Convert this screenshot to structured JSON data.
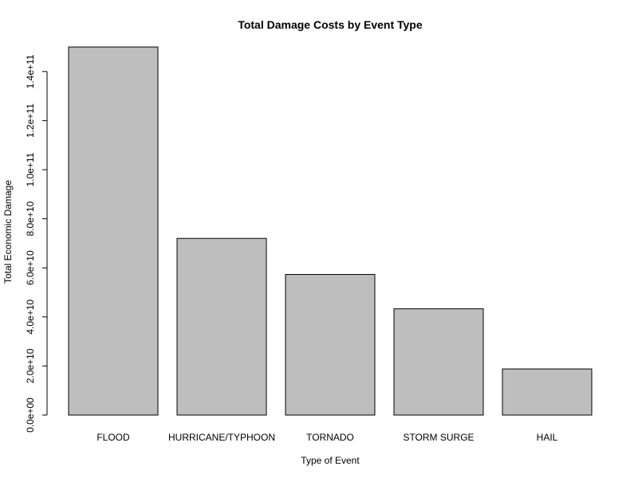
{
  "chart_data": {
    "type": "bar",
    "title": "Total Damage Costs by Event Type",
    "xlabel": "Type of Event",
    "ylabel": "Total Economic Damage",
    "categories": [
      "FLOOD",
      "HURRICANE/TYPHOON",
      "TORNADO",
      "STORM SURGE",
      "HAIL"
    ],
    "values": [
      150000000000,
      72000000000,
      57300000000,
      43300000000,
      18800000000
    ],
    "ylim": [
      0,
      150000000000
    ],
    "yticks": [
      0,
      20000000000,
      40000000000,
      60000000000,
      80000000000,
      100000000000,
      120000000000,
      140000000000
    ],
    "ytick_labels": [
      "0.0e+00",
      "2.0e+10",
      "4.0e+10",
      "6.0e+10",
      "8.0e+10",
      "1.0e+11",
      "1.2e+11",
      "1.4e+11"
    ],
    "grid": false,
    "bar_color": "#bebebe",
    "border_color": "#000000"
  }
}
